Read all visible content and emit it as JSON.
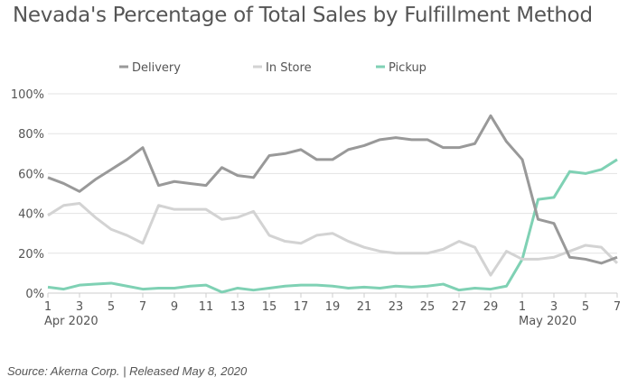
{
  "chart_data": {
    "type": "line",
    "title": "Nevada's Percentage of Total Sales by Fulfillment Method",
    "source": "Source: Akerna Corp. | Released May 8, 2020",
    "x": [
      "Apr 1",
      "Apr 2",
      "Apr 3",
      "Apr 4",
      "Apr 5",
      "Apr 6",
      "Apr 7",
      "Apr 8",
      "Apr 9",
      "Apr 10",
      "Apr 11",
      "Apr 12",
      "Apr 13",
      "Apr 14",
      "Apr 15",
      "Apr 16",
      "Apr 17",
      "Apr 18",
      "Apr 19",
      "Apr 20",
      "Apr 21",
      "Apr 22",
      "Apr 23",
      "Apr 24",
      "Apr 25",
      "Apr 26",
      "Apr 27",
      "Apr 28",
      "Apr 29",
      "Apr 30",
      "May 1",
      "May 2",
      "May 3",
      "May 4",
      "May 5",
      "May 6",
      "May 7"
    ],
    "x_ticks": [
      {
        "i": 0,
        "label": "1",
        "sub": "Apr 2020"
      },
      {
        "i": 2,
        "label": "3"
      },
      {
        "i": 4,
        "label": "5"
      },
      {
        "i": 6,
        "label": "7"
      },
      {
        "i": 8,
        "label": "9"
      },
      {
        "i": 10,
        "label": "11"
      },
      {
        "i": 12,
        "label": "13"
      },
      {
        "i": 14,
        "label": "15"
      },
      {
        "i": 16,
        "label": "17"
      },
      {
        "i": 18,
        "label": "19"
      },
      {
        "i": 20,
        "label": "21"
      },
      {
        "i": 22,
        "label": "23"
      },
      {
        "i": 24,
        "label": "25"
      },
      {
        "i": 26,
        "label": "27"
      },
      {
        "i": 28,
        "label": "29"
      },
      {
        "i": 30,
        "label": "1",
        "sub": "May 2020"
      },
      {
        "i": 32,
        "label": "3"
      },
      {
        "i": 34,
        "label": "5"
      },
      {
        "i": 36,
        "label": "7"
      }
    ],
    "y_ticks": [
      "0%",
      "20%",
      "40%",
      "60%",
      "80%",
      "100%"
    ],
    "ylim": [
      0,
      100
    ],
    "legend_position": "top",
    "series": [
      {
        "name": "Delivery",
        "color": "#999999",
        "values": [
          58,
          55,
          51,
          57,
          62,
          67,
          73,
          54,
          56,
          55,
          54,
          63,
          59,
          58,
          69,
          70,
          72,
          67,
          67,
          72,
          74,
          77,
          78,
          77,
          77,
          73,
          73,
          75,
          89,
          76,
          67,
          37,
          35,
          18,
          17,
          15,
          18
        ]
      },
      {
        "name": "In Store",
        "color": "#d3d3d3",
        "values": [
          39,
          44,
          45,
          38,
          32,
          29,
          25,
          44,
          42,
          42,
          42,
          37,
          38,
          41,
          29,
          26,
          25,
          29,
          30,
          26,
          23,
          21,
          20,
          20,
          20,
          22,
          26,
          23,
          9,
          21,
          17,
          17,
          18,
          21,
          24,
          23,
          15
        ]
      },
      {
        "name": "Pickup",
        "color": "#7fd1b4",
        "values": [
          3,
          2,
          4,
          4.5,
          5,
          3.5,
          2,
          2.5,
          2.5,
          3.5,
          4,
          0.5,
          2.5,
          1.5,
          2.5,
          3.5,
          4,
          4,
          3.5,
          2.5,
          3,
          2.5,
          3.5,
          3,
          3.5,
          4.5,
          1.5,
          2.5,
          2,
          3.5,
          17,
          47,
          48,
          61,
          60,
          62,
          67
        ]
      }
    ]
  }
}
